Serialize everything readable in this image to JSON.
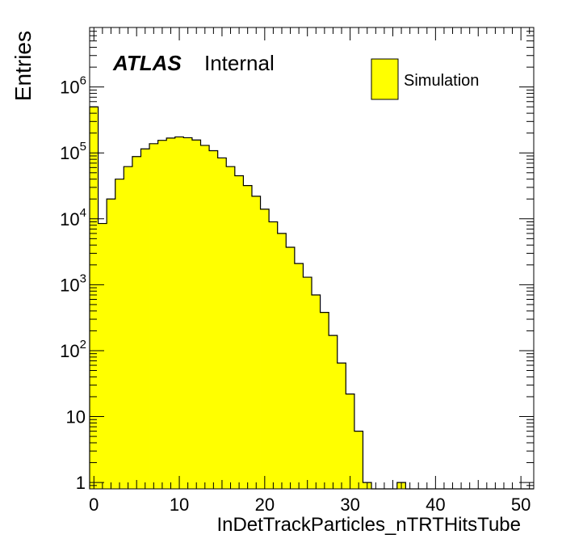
{
  "chart_data": {
    "type": "bar",
    "histogram": true,
    "title": "",
    "xlabel": "InDetTrackParticles_nTRTHitsTube",
    "ylabel": "Entries",
    "log_y": true,
    "xlim": [
      -0.5,
      51.5
    ],
    "ylim": [
      0.8,
      8000000
    ],
    "bin_width": 1,
    "grid": false,
    "fill_color": "#ffff00",
    "line_color": "#000000",
    "x_ticks": [
      "0",
      "10",
      "20",
      "30",
      "40",
      "50"
    ],
    "y_ticks": [
      "1",
      "10",
      "10^2",
      "10^3",
      "10^4",
      "10^5",
      "10^6"
    ],
    "legend": {
      "position": "top-right",
      "entries": [
        "Simulation"
      ]
    },
    "label": {
      "experiment": "ATLAS",
      "status": "Internal"
    },
    "series": [
      {
        "name": "Simulation",
        "bin_centers": [
          0,
          1,
          2,
          3,
          4,
          5,
          6,
          7,
          8,
          9,
          10,
          11,
          12,
          13,
          14,
          15,
          16,
          17,
          18,
          19,
          20,
          21,
          22,
          23,
          24,
          25,
          26,
          27,
          28,
          29,
          30,
          31,
          32,
          33,
          34,
          35,
          36,
          37,
          38,
          39,
          40,
          41,
          42,
          43,
          44,
          45,
          46,
          47,
          48,
          49,
          50,
          51
        ],
        "values": [
          500000,
          8500,
          20000,
          40000,
          62000,
          88000,
          115000,
          138000,
          155000,
          168000,
          175000,
          170000,
          157000,
          130000,
          108000,
          84000,
          62000,
          45000,
          32000,
          22000,
          14000,
          9000,
          6000,
          3700,
          2100,
          1300,
          700,
          380,
          170,
          65,
          22,
          6,
          1,
          0,
          0,
          0,
          1,
          0,
          0,
          0,
          0,
          0,
          0,
          0,
          0,
          0,
          0,
          0,
          0,
          0,
          0,
          0
        ]
      }
    ]
  }
}
